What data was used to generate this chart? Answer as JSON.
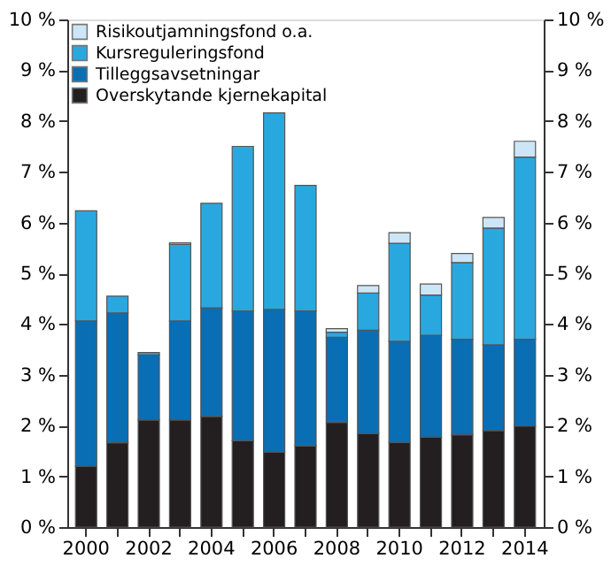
{
  "chart_data": {
    "type": "bar",
    "stacked": true,
    "categories": [
      "2000",
      null,
      "2002",
      null,
      "2004",
      null,
      "2006",
      null,
      "2008",
      null,
      "2010",
      null,
      "2012",
      null,
      "2014"
    ],
    "series": [
      {
        "name": "Overskytande kjernekapital",
        "color": "#231f20",
        "values": [
          1.2,
          1.66,
          2.11,
          2.11,
          2.18,
          1.7,
          1.48,
          1.6,
          2.06,
          1.84,
          1.67,
          1.77,
          1.82,
          1.9,
          1.99
        ]
      },
      {
        "name": "Tilleggsavsetningar",
        "color": "#0a6eb4",
        "values": [
          2.86,
          2.56,
          1.28,
          1.95,
          2.14,
          2.56,
          2.81,
          2.66,
          1.68,
          2.04,
          1.99,
          2.01,
          1.88,
          1.69,
          1.71
        ]
      },
      {
        "name": "Kursreguleringsfond",
        "color": "#29a8e0",
        "values": [
          2.17,
          0.33,
          0.05,
          1.51,
          2.06,
          3.24,
          3.87,
          2.47,
          0.1,
          0.73,
          1.93,
          0.79,
          1.51,
          2.3,
          3.59
        ]
      },
      {
        "name": "Risikoutjamningsfond o.a.",
        "color": "#cde6f7",
        "values": [
          0,
          0,
          0,
          0.03,
          null,
          0,
          0,
          0,
          0.07,
          0.15,
          0.21,
          0.22,
          0.18,
          0.21,
          0.31
        ]
      }
    ],
    "ylim": [
      0,
      10
    ],
    "yticks": [
      {
        "value": 0,
        "label": "0 %"
      },
      {
        "value": 1,
        "label": "1 %"
      },
      {
        "value": 2,
        "label": "2 %"
      },
      {
        "value": 3,
        "label": "3 %"
      },
      {
        "value": 4,
        "label": "4 %"
      },
      {
        "value": 5,
        "label": "5 %"
      },
      {
        "value": 6,
        "label": "6 %"
      },
      {
        "value": 7,
        "label": "7 %"
      },
      {
        "value": 8,
        "label": "8 %"
      },
      {
        "value": 9,
        "label": "9 %"
      },
      {
        "value": 10,
        "label": "10 %"
      }
    ],
    "y2lim": [
      0,
      10
    ],
    "y2ticks": [
      {
        "value": 0,
        "label": "0 %"
      },
      {
        "value": 1,
        "label": "1 %"
      },
      {
        "value": 2,
        "label": "2 %"
      },
      {
        "value": 3,
        "label": "3 %"
      },
      {
        "value": 4,
        "label": "4 %"
      },
      {
        "value": 5,
        "label": "5 %"
      },
      {
        "value": 6,
        "label": "6 %"
      },
      {
        "value": 7,
        "label": "7 %"
      },
      {
        "value": 8,
        "label": "8 %"
      },
      {
        "value": 9,
        "label": "9 %"
      },
      {
        "value": 10,
        "label": "10 %"
      }
    ],
    "grid": false,
    "legend": "top left"
  }
}
